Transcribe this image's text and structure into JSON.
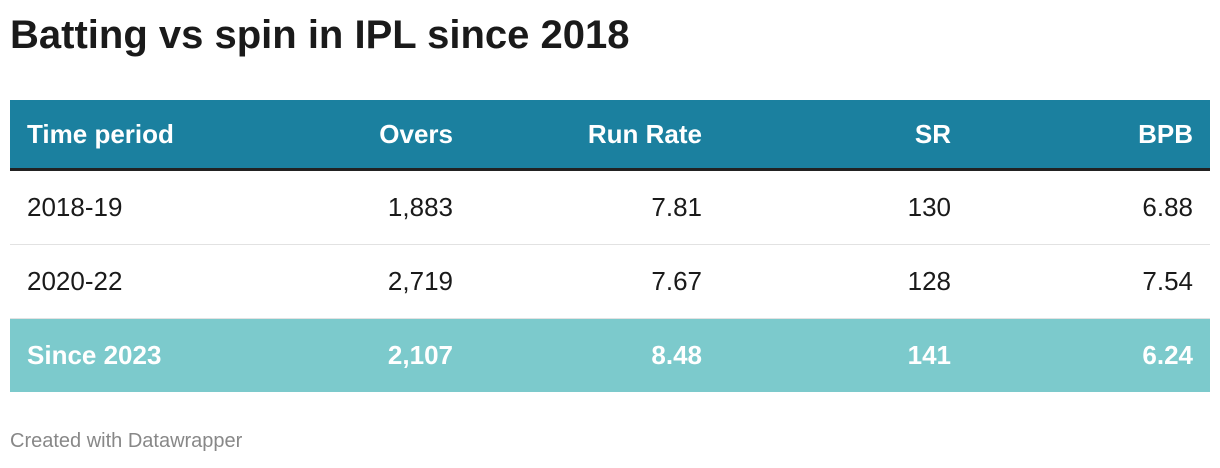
{
  "header": {
    "title": "Batting vs spin in IPL since 2018"
  },
  "table": {
    "columns": [
      "Time period",
      "Overs",
      "Run Rate",
      "SR",
      "BPB"
    ],
    "rows": [
      [
        "2018-19",
        "1,883",
        "7.81",
        "130",
        "6.88"
      ],
      [
        "2020-22",
        "2,719",
        "7.67",
        "128",
        "7.54"
      ],
      [
        "Since 2023",
        "2,107",
        "8.48",
        "141",
        "6.24"
      ]
    ]
  },
  "footer": {
    "credit": "Created with Datawrapper"
  }
}
